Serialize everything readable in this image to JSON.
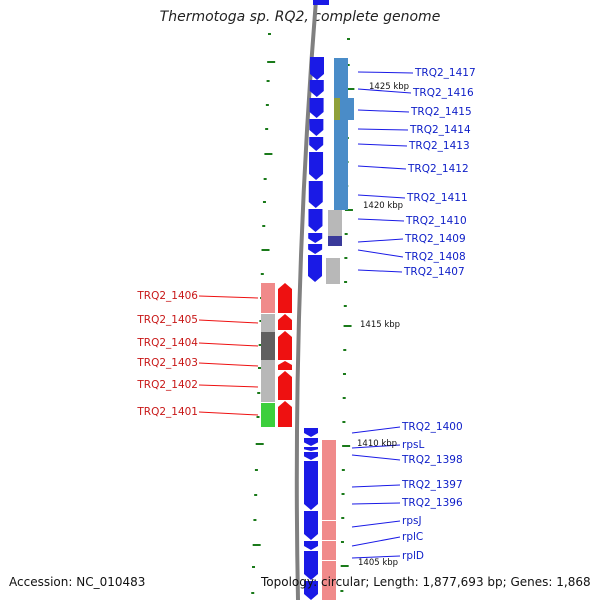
{
  "title": "Thermotoga sp. RQ2, complete genome",
  "footer": {
    "accession": "Accession: NC_010483",
    "topology": "Topology: circular; Length: 1,877,693 bp; Genes: 1,868"
  },
  "kbp_labels": [
    "1425 kbp",
    "1420 kbp",
    "1415 kbp",
    "1410 kbp",
    "1405 kbp"
  ],
  "forward_genes": [
    "TRQ2_1417",
    "TRQ2_1416",
    "TRQ2_1415",
    "TRQ2_1414",
    "TRQ2_1413",
    "TRQ2_1412",
    "TRQ2_1411",
    "TRQ2_1410",
    "TRQ2_1409",
    "TRQ2_1408",
    "TRQ2_1407"
  ],
  "reverse_genes": [
    "TRQ2_1406",
    "TRQ2_1405",
    "TRQ2_1404",
    "TRQ2_1403",
    "TRQ2_1402",
    "TRQ2_1401"
  ],
  "lower_genes": [
    "TRQ2_1400",
    "rpsL",
    "TRQ2_1398",
    "TRQ2_1397",
    "TRQ2_1396",
    "rpsJ",
    "rplC",
    "rplD"
  ],
  "colors": {
    "forward": "#1a1ae6",
    "reverse": "#ee1111",
    "backbone": "#808080",
    "tick": "#1a7a1a",
    "cog_blue": "#4a8cc8",
    "cog_grey": "#b8b8b8",
    "cog_dark": "#606060",
    "cog_olive": "#8fa03a",
    "cog_navy": "#3a3a9a",
    "cog_pink": "#f08a8a",
    "cog_green": "#3ccf3c"
  }
}
